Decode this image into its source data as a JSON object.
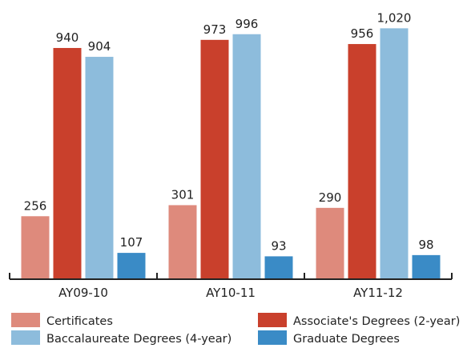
{
  "chart_data": {
    "type": "bar",
    "categories": [
      "AY09-10",
      "AY10-11",
      "AY11-12"
    ],
    "series": [
      {
        "name": "Certificates",
        "color": "#DE8A7C",
        "values": [
          256,
          301,
          290
        ],
        "labels": [
          "256",
          "301",
          "290"
        ]
      },
      {
        "name": "Associate's Degrees (2-year)",
        "color": "#C9402C",
        "values": [
          940,
          973,
          956
        ],
        "labels": [
          "940",
          "973",
          "956"
        ]
      },
      {
        "name": "Baccalaureate Degrees (4-year)",
        "color": "#8DBCDC",
        "values": [
          904,
          996,
          1020
        ],
        "labels": [
          "904",
          "996",
          "1,020"
        ]
      },
      {
        "name": "Graduate Degrees",
        "color": "#3A8BC6",
        "values": [
          107,
          93,
          98
        ],
        "labels": [
          "107",
          "93",
          "98"
        ]
      }
    ],
    "title": "",
    "xlabel": "",
    "ylabel": "",
    "ylim": [
      0,
      1070
    ],
    "grid": false,
    "legend": "bottom"
  }
}
